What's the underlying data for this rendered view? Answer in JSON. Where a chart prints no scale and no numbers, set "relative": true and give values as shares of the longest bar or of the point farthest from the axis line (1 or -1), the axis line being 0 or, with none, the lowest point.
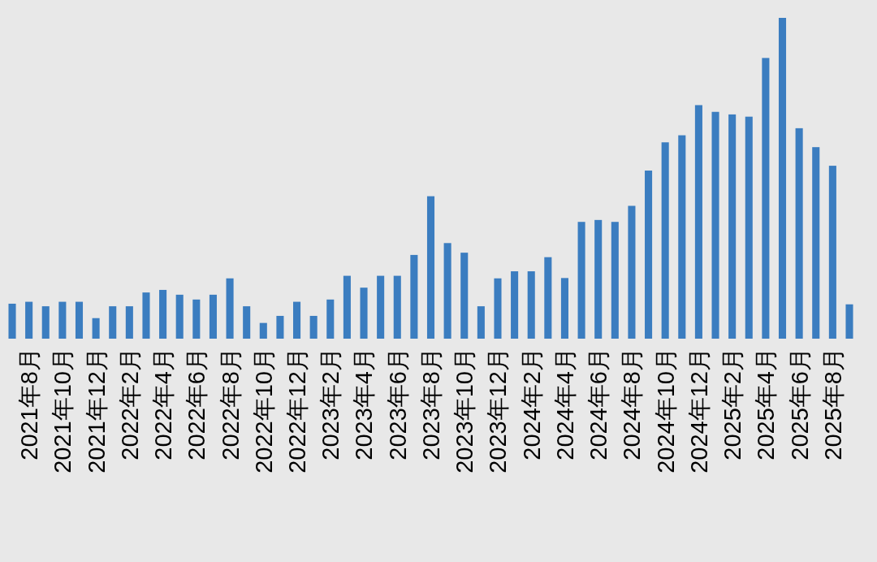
{
  "chart_data": {
    "type": "bar",
    "relative": true,
    "categories": [
      null,
      "2021年8月",
      null,
      "2021年10月",
      null,
      "2021年12月",
      null,
      "2022年2月",
      null,
      "2022年4月",
      null,
      "2022年6月",
      null,
      "2022年8月",
      null,
      "2022年10月",
      null,
      "2022年12月",
      null,
      "2023年2月",
      null,
      "2023年4月",
      null,
      "2023年6月",
      null,
      "2023年8月",
      null,
      "2023年10月",
      null,
      "2023年12月",
      null,
      "2024年2月",
      null,
      "2024年4月",
      null,
      "2024年6月",
      null,
      "2024年8月",
      null,
      "2024年10月",
      null,
      "2024年12月",
      null,
      "2025年2月",
      null,
      "2025年4月",
      null,
      "2025年6月",
      null,
      "2025年8月",
      null
    ],
    "values": [
      0.109,
      0.115,
      0.101,
      0.115,
      0.115,
      0.064,
      0.101,
      0.101,
      0.144,
      0.152,
      0.137,
      0.122,
      0.137,
      0.188,
      0.101,
      0.049,
      0.071,
      0.115,
      0.071,
      0.122,
      0.196,
      0.159,
      0.196,
      0.196,
      0.261,
      0.444,
      0.298,
      0.268,
      0.101,
      0.188,
      0.21,
      0.21,
      0.254,
      0.189,
      0.364,
      0.37,
      0.364,
      0.414,
      0.524,
      0.612,
      0.634,
      0.728,
      0.707,
      0.699,
      0.692,
      0.875,
      1,
      0.656,
      0.597,
      0.539,
      0.107
    ],
    "color": "#3b7dc0"
  }
}
